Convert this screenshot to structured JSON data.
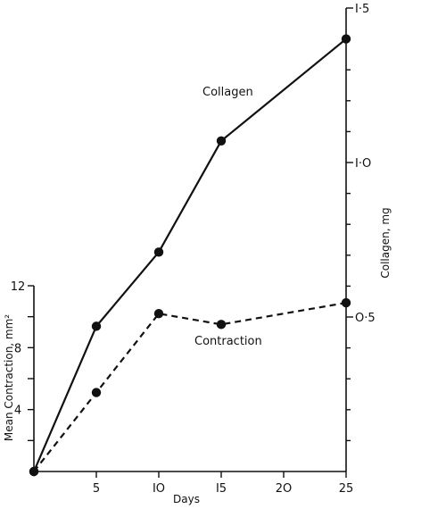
{
  "chart_data": {
    "type": "line",
    "xlabel": "Days",
    "x_ticks": [
      "5",
      "IO",
      "I5",
      "2O",
      "25"
    ],
    "x_tick_values": [
      5,
      10,
      15,
      20,
      25
    ],
    "xlim": [
      0,
      25
    ],
    "left_axis": {
      "label": "Mean Contraction, mm²",
      "ticks": [
        "4",
        "8",
        "12"
      ],
      "tick_values": [
        4,
        8,
        12
      ],
      "ylim": [
        0,
        12
      ]
    },
    "right_axis": {
      "label": "Collagen, mg",
      "ticks": [
        "O·5",
        "I·O",
        "I·5"
      ],
      "tick_values": [
        0.5,
        1.0,
        1.5
      ],
      "ylim": [
        0,
        1.5
      ]
    },
    "series": [
      {
        "name": "Collagen",
        "axis": "right",
        "style": "solid",
        "x": [
          0,
          5,
          10,
          15,
          25
        ],
        "y": [
          0.0,
          0.47,
          0.71,
          1.07,
          1.4
        ]
      },
      {
        "name": "Contraction",
        "axis": "left",
        "style": "dashed",
        "x": [
          0,
          5,
          10,
          15,
          25
        ],
        "y": [
          0.0,
          5.1,
          10.2,
          9.5,
          10.9
        ]
      }
    ],
    "grid": false,
    "colors": {
      "line": "#111111",
      "background": "#ffffff"
    }
  }
}
